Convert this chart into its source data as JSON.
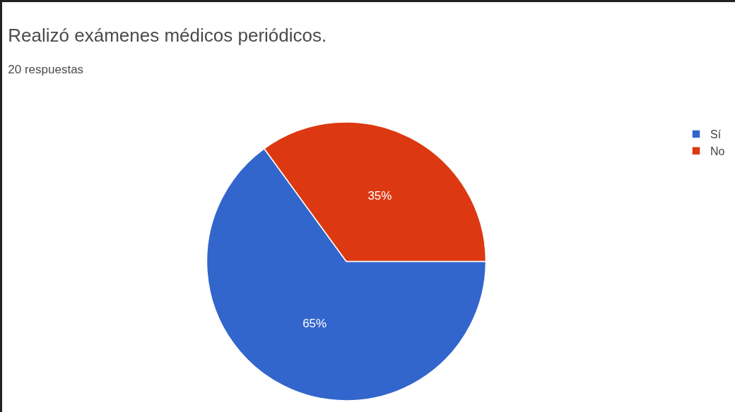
{
  "chart_data": {
    "type": "pie",
    "title": "Realizó exámenes médicos periódicos.",
    "subtitle": "20 respuestas",
    "categories": [
      "Sí",
      "No"
    ],
    "values": [
      65,
      35
    ],
    "colors": [
      "#3366cc",
      "#dc3912"
    ],
    "value_labels": [
      "65%",
      "35%"
    ],
    "legend": "top right"
  }
}
